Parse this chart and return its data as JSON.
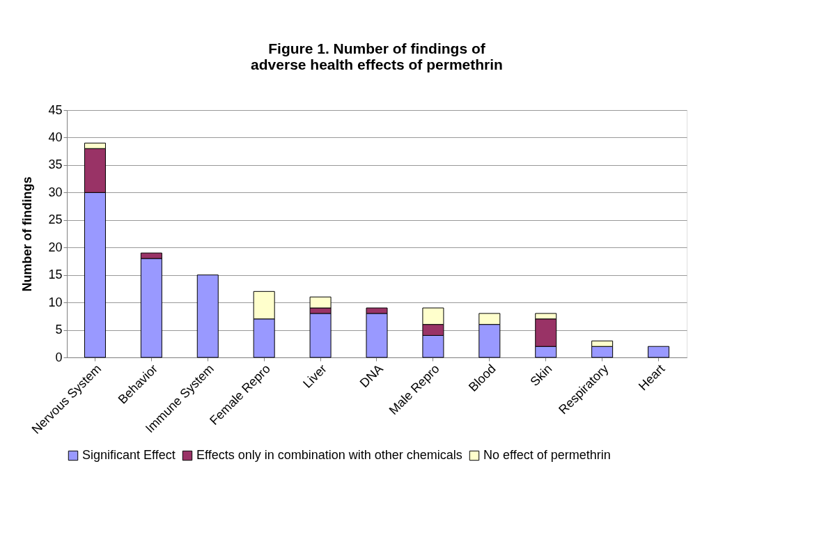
{
  "chart_data": {
    "type": "bar",
    "title": "Figure 1.  Number of findings of\nadverse health effects of permethrin",
    "ylabel": "Number of findings",
    "categories": [
      "Nervous System",
      "Behavior",
      "Immune System",
      "Female Repro",
      "Liver",
      "DNA",
      "Male Repro",
      "Blood",
      "Skin",
      "Respiratory",
      "Heart"
    ],
    "stacked": true,
    "series": [
      {
        "name": "Significant Effect",
        "color": "#9999ff",
        "values": [
          30,
          18,
          15,
          7,
          8,
          8,
          4,
          6,
          2,
          2,
          2
        ]
      },
      {
        "name": "Effects only in combination with other chemicals",
        "color": "#993366",
        "values": [
          8,
          1,
          0,
          0,
          1,
          1,
          2,
          0,
          5,
          0,
          0
        ]
      },
      {
        "name": "No effect of permethrin",
        "color": "#ffffcc",
        "values": [
          1,
          0,
          0,
          5,
          2,
          0,
          3,
          2,
          1,
          1,
          0
        ]
      }
    ],
    "ylim": [
      0,
      45
    ],
    "yticks": [
      0,
      5,
      10,
      15,
      20,
      25,
      30,
      35,
      40,
      45
    ],
    "grid": "y",
    "legend": "bottom"
  }
}
